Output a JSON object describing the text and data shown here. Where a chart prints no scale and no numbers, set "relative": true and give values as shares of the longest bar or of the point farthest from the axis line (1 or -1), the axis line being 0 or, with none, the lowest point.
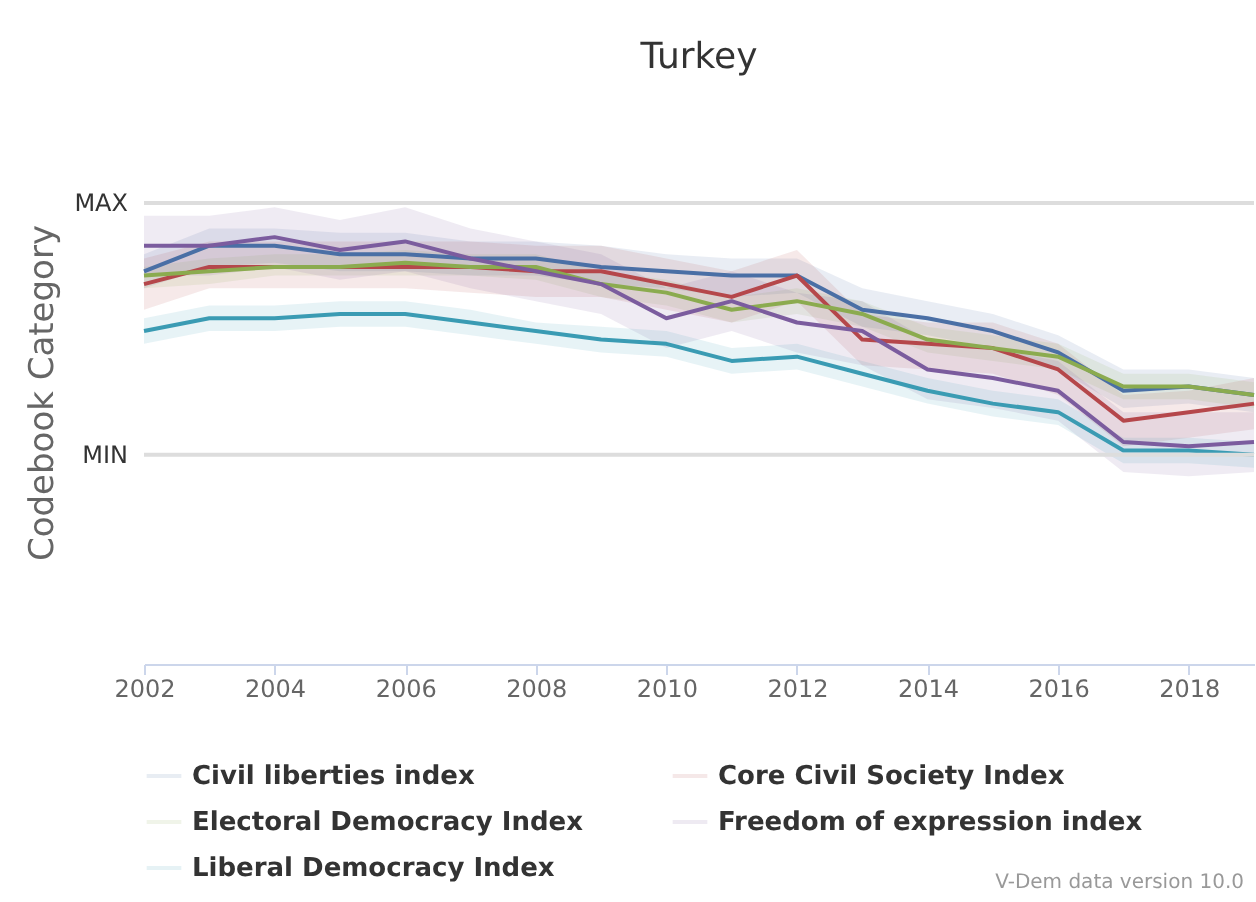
{
  "chart_data": {
    "type": "line",
    "title": "Turkey",
    "ylabel": "Codebook Category",
    "annotations": [
      "V-Dem data version 10.0"
    ],
    "x": [
      2002,
      2003,
      2004,
      2005,
      2006,
      2007,
      2008,
      2009,
      2010,
      2011,
      2012,
      2013,
      2014,
      2015,
      2016,
      2017,
      2018,
      2019
    ],
    "xlim": [
      2002,
      2019
    ],
    "xticks": [
      2002,
      2004,
      2006,
      2008,
      2010,
      2012,
      2014,
      2016,
      2018
    ],
    "relative": true,
    "ref_lines": [
      {
        "axis": "y",
        "value": 1.08,
        "label": "MAX",
        "color": "#dddddd"
      },
      {
        "axis": "y",
        "value": 0.49,
        "label": "MIN",
        "color": "#dddddd"
      }
    ],
    "legend": "bottom",
    "line_style": "solid",
    "series": [
      {
        "name": "Civil liberties index",
        "color": "#4a6fa5",
        "values": [
          0.92,
          0.98,
          0.98,
          0.96,
          0.96,
          0.95,
          0.95,
          0.93,
          0.92,
          0.91,
          0.91,
          0.83,
          0.81,
          0.78,
          0.73,
          0.64,
          0.65,
          0.63
        ],
        "lower": [
          0.88,
          0.93,
          0.94,
          0.92,
          0.92,
          0.91,
          0.91,
          0.89,
          0.88,
          0.86,
          0.87,
          0.79,
          0.77,
          0.74,
          0.69,
          0.6,
          0.61,
          0.59
        ],
        "upper": [
          0.96,
          1.02,
          1.02,
          1.01,
          1.01,
          0.99,
          0.99,
          0.98,
          0.96,
          0.95,
          0.95,
          0.88,
          0.85,
          0.82,
          0.77,
          0.69,
          0.69,
          0.67
        ]
      },
      {
        "name": "Core Civil Society Index",
        "color": "#b5474b",
        "values": [
          0.89,
          0.93,
          0.93,
          0.93,
          0.93,
          0.93,
          0.92,
          0.92,
          0.89,
          0.86,
          0.91,
          0.76,
          0.75,
          0.74,
          0.69,
          0.57,
          0.59,
          0.61
        ],
        "lower": [
          0.83,
          0.88,
          0.88,
          0.88,
          0.88,
          0.87,
          0.86,
          0.86,
          0.83,
          0.8,
          0.85,
          0.7,
          0.69,
          0.68,
          0.63,
          0.51,
          0.53,
          0.55
        ],
        "upper": [
          0.95,
          0.99,
          0.99,
          0.99,
          0.99,
          0.99,
          0.98,
          0.98,
          0.95,
          0.92,
          0.97,
          0.82,
          0.8,
          0.8,
          0.75,
          0.63,
          0.64,
          0.67
        ]
      },
      {
        "name": "Electoral Democracy Index",
        "color": "#8bab4f",
        "values": [
          0.91,
          0.92,
          0.93,
          0.93,
          0.94,
          0.93,
          0.93,
          0.89,
          0.87,
          0.83,
          0.85,
          0.82,
          0.76,
          0.74,
          0.72,
          0.65,
          0.65,
          0.63
        ],
        "lower": [
          0.88,
          0.89,
          0.91,
          0.91,
          0.91,
          0.91,
          0.9,
          0.86,
          0.84,
          0.8,
          0.82,
          0.79,
          0.73,
          0.71,
          0.69,
          0.62,
          0.62,
          0.6
        ],
        "upper": [
          0.93,
          0.95,
          0.96,
          0.96,
          0.97,
          0.96,
          0.96,
          0.92,
          0.9,
          0.86,
          0.88,
          0.85,
          0.79,
          0.77,
          0.75,
          0.68,
          0.68,
          0.66
        ]
      },
      {
        "name": "Freedom of expression index",
        "color": "#7b5c9e",
        "values": [
          0.98,
          0.98,
          1.0,
          0.97,
          0.99,
          0.95,
          0.92,
          0.89,
          0.81,
          0.85,
          0.8,
          0.78,
          0.69,
          0.67,
          0.64,
          0.52,
          0.51,
          0.52
        ],
        "lower": [
          0.91,
          0.91,
          0.93,
          0.9,
          0.92,
          0.88,
          0.85,
          0.82,
          0.74,
          0.78,
          0.73,
          0.7,
          0.62,
          0.6,
          0.57,
          0.45,
          0.44,
          0.45
        ],
        "upper": [
          1.05,
          1.05,
          1.07,
          1.04,
          1.07,
          1.02,
          0.99,
          0.96,
          0.88,
          0.92,
          0.87,
          0.85,
          0.76,
          0.74,
          0.71,
          0.59,
          0.59,
          0.59
        ]
      },
      {
        "name": "Liberal Democracy Index",
        "color": "#3a9bb3",
        "values": [
          0.78,
          0.81,
          0.81,
          0.82,
          0.82,
          0.8,
          0.78,
          0.76,
          0.75,
          0.71,
          0.72,
          0.68,
          0.64,
          0.61,
          0.59,
          0.5,
          0.5,
          0.49
        ],
        "lower": [
          0.75,
          0.78,
          0.78,
          0.79,
          0.79,
          0.77,
          0.75,
          0.73,
          0.72,
          0.68,
          0.69,
          0.65,
          0.61,
          0.58,
          0.56,
          0.47,
          0.47,
          0.46
        ],
        "upper": [
          0.81,
          0.84,
          0.84,
          0.85,
          0.85,
          0.83,
          0.8,
          0.79,
          0.78,
          0.74,
          0.75,
          0.71,
          0.67,
          0.64,
          0.62,
          0.53,
          0.53,
          0.52
        ]
      }
    ]
  }
}
